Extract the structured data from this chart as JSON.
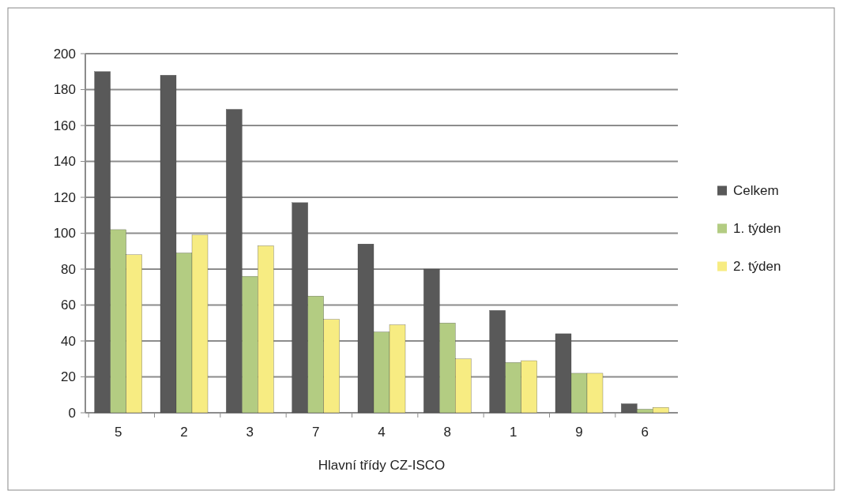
{
  "chart_data": {
    "type": "bar",
    "xlabel": "Hlavní třídy CZ-ISCO",
    "categories": [
      "5",
      "2",
      "3",
      "7",
      "4",
      "8",
      "1",
      "9",
      "6"
    ],
    "series": [
      {
        "name": "Celkem",
        "color": "#595959",
        "values": [
          190,
          188,
          169,
          117,
          94,
          80,
          57,
          44,
          5
        ]
      },
      {
        "name": "1. týden",
        "color": "#b3cc82",
        "values": [
          102,
          89,
          76,
          65,
          45,
          50,
          28,
          22,
          2
        ]
      },
      {
        "name": "2. týden",
        "color": "#f7ec82",
        "values": [
          88,
          99,
          93,
          52,
          49,
          30,
          29,
          22,
          3
        ]
      }
    ],
    "ylim": [
      0,
      200
    ],
    "yticks": [
      0,
      20,
      40,
      60,
      80,
      100,
      120,
      140,
      160,
      180,
      200
    ],
    "grid": "y",
    "legend": "right"
  }
}
